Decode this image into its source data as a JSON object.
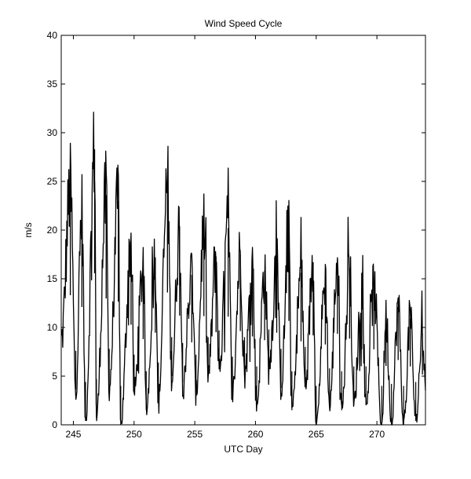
{
  "chart_data": {
    "type": "line",
    "title": "Wind Speed Cycle",
    "xlabel": "UTC Day",
    "ylabel": "m/s",
    "xlim": [
      244,
      274
    ],
    "ylim": [
      0,
      40
    ],
    "xticks": [
      245,
      250,
      255,
      260,
      265,
      270
    ],
    "yticks": [
      0,
      5,
      10,
      15,
      20,
      25,
      30,
      35,
      40
    ],
    "grid": false,
    "line_color": "#000000",
    "series": [
      {
        "sampling": "hourly",
        "x_start": 244.0,
        "x_end": 274.0,
        "daily_peaks": [
          {
            "day": 244.75,
            "speed": 24.2
          },
          {
            "day": 245.7,
            "speed": 22.0
          },
          {
            "day": 246.75,
            "speed": 28.3
          },
          {
            "day": 247.7,
            "speed": 23.6
          },
          {
            "day": 248.7,
            "speed": 23.0
          },
          {
            "day": 249.75,
            "speed": 18.7
          },
          {
            "day": 250.75,
            "speed": 16.0
          },
          {
            "day": 251.75,
            "speed": 17.2
          },
          {
            "day": 252.75,
            "speed": 24.7
          },
          {
            "day": 253.75,
            "speed": 20.4
          },
          {
            "day": 254.75,
            "speed": 15.4
          },
          {
            "day": 255.75,
            "speed": 20.3
          },
          {
            "day": 256.75,
            "speed": 17.3
          },
          {
            "day": 257.75,
            "speed": 20.2
          },
          {
            "day": 258.75,
            "speed": 17.5
          },
          {
            "day": 259.75,
            "speed": 16.5
          },
          {
            "day": 260.75,
            "speed": 15.8
          },
          {
            "day": 261.75,
            "speed": 17.2
          },
          {
            "day": 262.75,
            "speed": 19.4
          },
          {
            "day": 263.75,
            "speed": 15.6
          },
          {
            "day": 264.75,
            "speed": 16.7
          },
          {
            "day": 265.75,
            "speed": 15.0
          },
          {
            "day": 266.75,
            "speed": 17.0
          },
          {
            "day": 267.75,
            "speed": 16.1
          },
          {
            "day": 268.75,
            "speed": 14.1
          },
          {
            "day": 269.75,
            "speed": 14.1
          },
          {
            "day": 270.75,
            "speed": 11.0
          },
          {
            "day": 271.75,
            "speed": 12.1
          },
          {
            "day": 272.75,
            "speed": 10.9
          },
          {
            "day": 273.75,
            "speed": 9.4
          }
        ],
        "daily_troughs": [
          {
            "day": 245.2,
            "speed": 3.6
          },
          {
            "day": 246.0,
            "speed": 0.4
          },
          {
            "day": 246.9,
            "speed": 0.7
          },
          {
            "day": 247.95,
            "speed": 3.8
          },
          {
            "day": 248.9,
            "speed": 0.0
          },
          {
            "day": 250.0,
            "speed": 3.2
          },
          {
            "day": 251.0,
            "speed": 1.5
          },
          {
            "day": 252.0,
            "speed": 2.4
          },
          {
            "day": 253.1,
            "speed": 5.0
          },
          {
            "day": 254.0,
            "speed": 4.4
          },
          {
            "day": 255.1,
            "speed": 3.2
          },
          {
            "day": 256.1,
            "speed": 5.0
          },
          {
            "day": 257.0,
            "speed": 5.7
          },
          {
            "day": 258.1,
            "speed": 3.0
          },
          {
            "day": 259.1,
            "speed": 5.0
          },
          {
            "day": 260.1,
            "speed": 2.0
          },
          {
            "day": 261.1,
            "speed": 5.8
          },
          {
            "day": 262.1,
            "speed": 3.8
          },
          {
            "day": 263.0,
            "speed": 1.5
          },
          {
            "day": 264.1,
            "speed": 4.0
          },
          {
            "day": 265.0,
            "speed": 0.0
          },
          {
            "day": 266.1,
            "speed": 1.8
          },
          {
            "day": 267.1,
            "speed": 1.5
          },
          {
            "day": 268.1,
            "speed": 2.0
          },
          {
            "day": 269.1,
            "speed": 2.0
          },
          {
            "day": 270.4,
            "speed": 0.0
          },
          {
            "day": 271.2,
            "speed": 0.2
          },
          {
            "day": 272.2,
            "speed": 0.0
          },
          {
            "day": 273.2,
            "speed": 0.4
          }
        ]
      }
    ]
  }
}
